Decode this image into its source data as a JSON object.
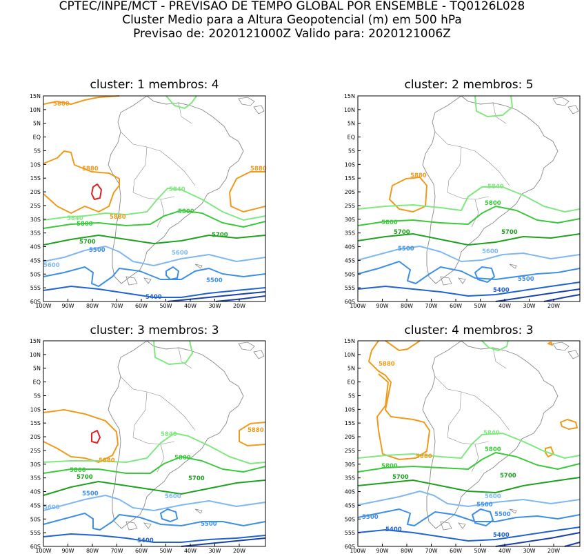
{
  "header": {
    "line1": "CPTEC/INPE/MCT - PREVISAO DE TEMPO GLOBAL POR ENSEMBLE - TQ0126L028",
    "line2": "Cluster Medio para a Altura Geopotencial (m) em 500 hPa",
    "line3": "Previsao de: 2020121000Z   Valido para: 2020121006Z"
  },
  "axes": {
    "lat_labels": [
      "15N",
      "10N",
      "5N",
      "EQ",
      "5S",
      "10S",
      "15S",
      "20S",
      "25S",
      "30S",
      "35S",
      "40S",
      "45S",
      "50S",
      "55S",
      "60S"
    ],
    "lon_labels": [
      "100W",
      "90W",
      "80W",
      "70W",
      "60W",
      "50W",
      "40W",
      "30W",
      "20W"
    ]
  },
  "colors": {
    "c5880_high": "#dd2222",
    "c5880": "#f09a1c",
    "c5840": "#7fe87f",
    "c5800": "#3cc83c",
    "c5700": "#1fa01f",
    "c5600": "#7fb8f0",
    "c5500": "#3d8fe6",
    "c5400": "#1f62d0",
    "deep": "#1a3fa8",
    "land": "#888888"
  },
  "panels": [
    {
      "title": "cluster: 1   membros: 4",
      "contour_labels": {
        "l5880a": "5880",
        "l5880b": "5880",
        "l5880c": "5880",
        "l5880d": "5880",
        "l5840a": "5840",
        "l5840b": "5840",
        "l5800a": "5800",
        "l5800b": "5800",
        "l5700a": "5700",
        "l5700b": "5700",
        "l5600a": "5600",
        "l5600b": "5600",
        "l5500a": "5500",
        "l5500b": "5500",
        "l5400a": "5400"
      }
    },
    {
      "title": "cluster: 2   membros: 5",
      "contour_labels": {
        "l5880a": "5880",
        "l5840a": "5840",
        "l5800a": "5800",
        "l5800b": "5800",
        "l5700a": "5700",
        "l5700b": "5700",
        "l5600a": "5600",
        "l5500a": "5500",
        "l5500b": "5500",
        "l5400a": "5400"
      }
    },
    {
      "title": "cluster: 3   membros: 3",
      "contour_labels": {
        "l5880a": "5880",
        "l5880b": "5880",
        "l5840a": "5840",
        "l5800a": "5800",
        "l5800b": "5800",
        "l5700a": "5700",
        "l5700b": "5700",
        "l5600a": "5600",
        "l5600b": "5600",
        "l5500a": "5500",
        "l5500b": "5500",
        "l5400a": "5400"
      }
    },
    {
      "title": "cluster: 4   membros: 3",
      "contour_labels": {
        "l5880a": "5880",
        "l5880b": "5880",
        "l5840a": "5840",
        "l5800a": "5800",
        "l5800b": "5800",
        "l5700a": "5700",
        "l5700b": "5700",
        "l5600a": "5600",
        "l5500a": "5500",
        "l5500b": "5500",
        "l5500c": "5500",
        "l5400a": "5400",
        "l5400b": "5400"
      }
    }
  ]
}
